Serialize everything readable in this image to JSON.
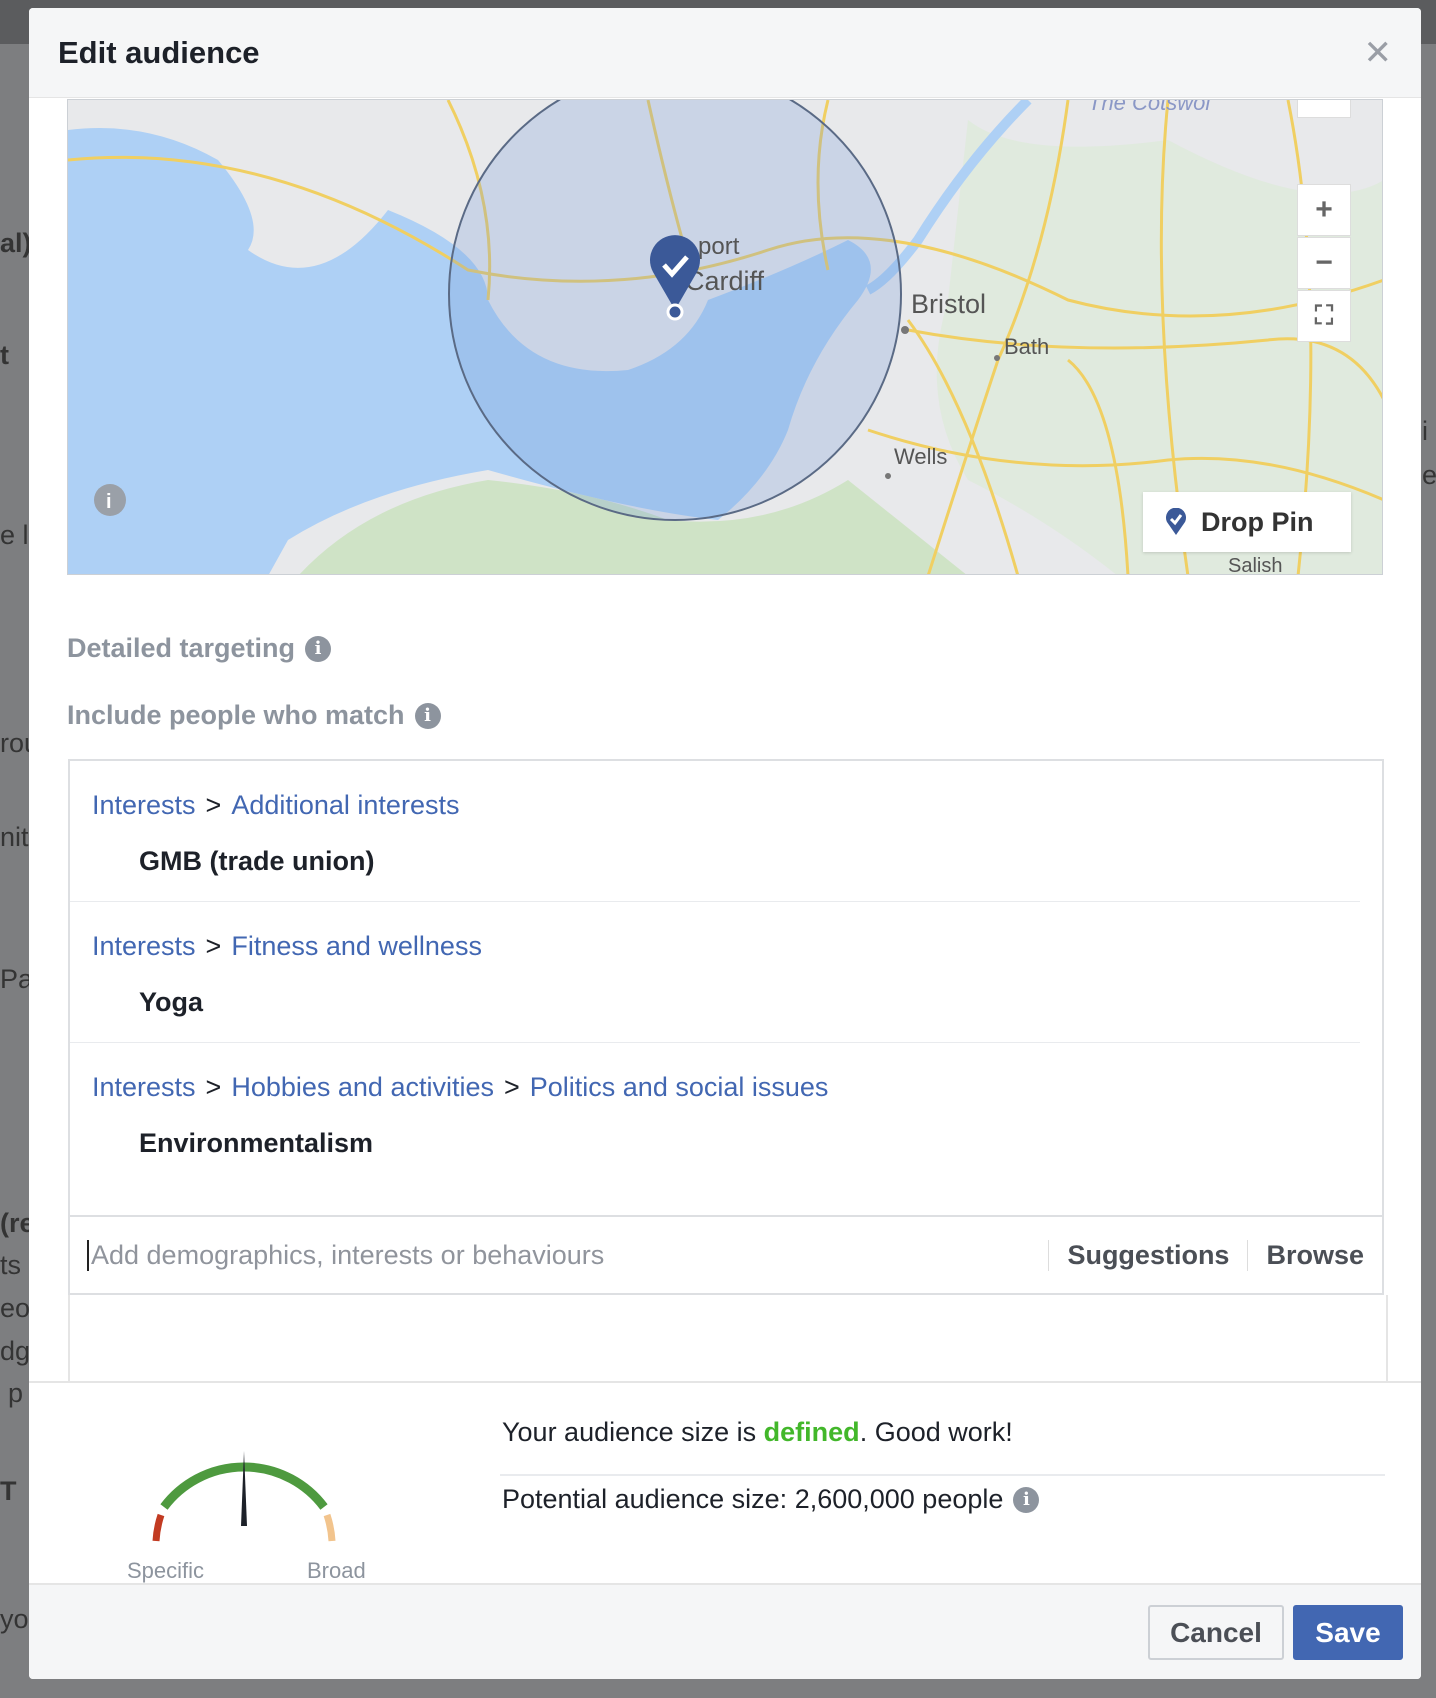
{
  "backdrop": {
    "fragments": [
      "al)",
      "t",
      "e li",
      "rou",
      "nit",
      "Pa",
      "(re",
      "ts",
      "eo",
      "dg",
      "p",
      "T",
      "yo",
      "i",
      "e"
    ]
  },
  "dialog": {
    "title": "Edit audience",
    "close_icon": "close-icon"
  },
  "map": {
    "places": [
      "port",
      "Cardiff",
      "Bristol",
      "Bath",
      "Wells",
      "The Cotswol",
      "Salish"
    ],
    "zoom_in": "+",
    "zoom_out": "−",
    "drop_pin_label": "Drop Pin",
    "colors": {
      "water": "#aed0f5",
      "radius": "#9bbbe8",
      "pin": "#3b5998"
    }
  },
  "targeting": {
    "heading": "Detailed targeting",
    "include_label": "Include people who match",
    "items": [
      {
        "path": [
          "Interests",
          "Additional interests"
        ],
        "name": "GMB (trade union)"
      },
      {
        "path": [
          "Interests",
          "Fitness and wellness"
        ],
        "name": "Yoga"
      },
      {
        "path": [
          "Interests",
          "Hobbies and activities",
          "Politics and social issues"
        ],
        "name": "Environmentalism"
      }
    ],
    "separator": ">",
    "input": {
      "value": "",
      "placeholder": "Add demographics, interests or behaviours"
    },
    "suggestions_label": "Suggestions",
    "browse_label": "Browse"
  },
  "audience": {
    "msg_prefix": "Your audience size is ",
    "msg_status": "defined",
    "msg_suffix": ". Good work!",
    "status_color": "#42b72a",
    "potential": "Potential audience size: 2,600,000 people",
    "gauge": {
      "specific_label": "Specific",
      "broad_label": "Broad",
      "needle_position": 0.5
    }
  },
  "footer": {
    "cancel_label": "Cancel",
    "save_label": "Save"
  }
}
